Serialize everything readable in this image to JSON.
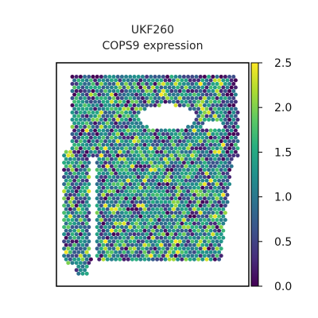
{
  "chart_data": {
    "type": "heatmap",
    "title_line1": "UKF260",
    "title_line2": "COPS9 expression",
    "colormap": "viridis",
    "colorbar": {
      "min": 0.0,
      "max": 2.5,
      "ticks": [
        "0.0",
        "0.5",
        "1.0",
        "1.5",
        "2.0",
        "2.5"
      ],
      "tick_values": [
        0.0,
        0.5,
        1.0,
        1.5,
        2.0,
        2.5
      ]
    },
    "grid": false,
    "spots_description_value_range": [
      0.0,
      2.5
    ],
    "colors": {
      "viridis_low": "#440154",
      "viridis_mid": "#21918c",
      "viridis_high": "#fde725",
      "frame": "#000000"
    }
  }
}
